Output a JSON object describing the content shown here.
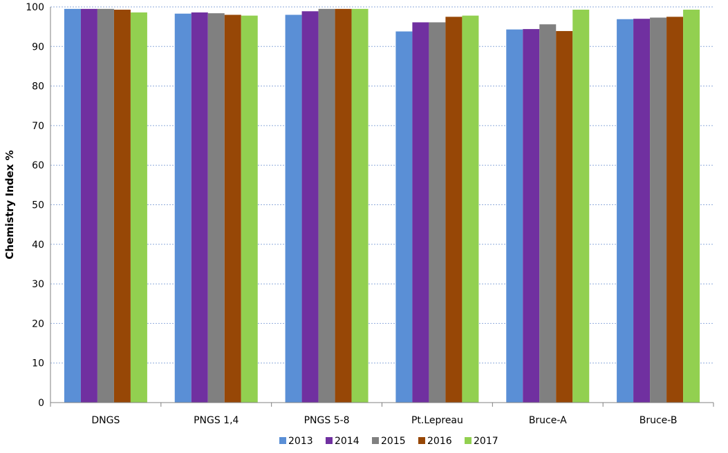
{
  "chart_data": {
    "type": "bar",
    "title": "",
    "xlabel": "",
    "ylabel": "Chemistry Index  %",
    "ylim": [
      0,
      100
    ],
    "yticks": [
      0,
      10,
      20,
      30,
      40,
      50,
      60,
      70,
      80,
      90,
      100
    ],
    "grid": "horizontal dotted",
    "legend_position": "bottom",
    "categories": [
      "DNGS",
      "PNGS 1,4",
      "PNGS 5-8",
      "Pt.Lepreau",
      "Bruce-A",
      "Bruce-B"
    ],
    "series": [
      {
        "name": "2013",
        "color": "#5a8fd6",
        "values": [
          99.5,
          98.3,
          98.0,
          93.8,
          94.3,
          96.9
        ]
      },
      {
        "name": "2014",
        "color": "#7030a0",
        "values": [
          99.5,
          98.6,
          98.9,
          96.1,
          94.4,
          97.0
        ]
      },
      {
        "name": "2015",
        "color": "#808080",
        "values": [
          99.5,
          98.4,
          99.5,
          96.1,
          95.6,
          97.3
        ]
      },
      {
        "name": "2016",
        "color": "#974706",
        "values": [
          99.3,
          98.0,
          99.5,
          97.5,
          93.9,
          97.5
        ]
      },
      {
        "name": "2017",
        "color": "#92d050",
        "values": [
          98.6,
          97.8,
          99.5,
          97.8,
          99.3,
          99.3
        ]
      }
    ]
  }
}
